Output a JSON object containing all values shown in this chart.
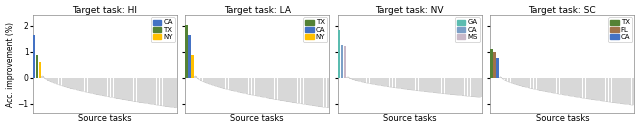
{
  "subplots": [
    {
      "title": "Target task: HI",
      "highlighted_bars": [
        {
          "label": "CA",
          "value": 1.65,
          "color": "#4472C4"
        },
        {
          "label": "TX",
          "value": 0.88,
          "color": "#548235"
        },
        {
          "label": "NY",
          "value": 0.62,
          "color": "#FFC000"
        }
      ],
      "n_gray_bars": 47,
      "gray_bar_max": 0.08,
      "gray_bar_min": -1.15
    },
    {
      "title": "Target task: LA",
      "highlighted_bars": [
        {
          "label": "TX",
          "value": 2.02,
          "color": "#548235"
        },
        {
          "label": "CA",
          "value": 1.65,
          "color": "#4472C4"
        },
        {
          "label": "NY",
          "value": 0.88,
          "color": "#FFC000"
        }
      ],
      "n_gray_bars": 47,
      "gray_bar_max": 0.08,
      "gray_bar_min": -1.15
    },
    {
      "title": "Target task: NV",
      "highlighted_bars": [
        {
          "label": "GA",
          "value": 1.82,
          "color": "#5BBCB0"
        },
        {
          "label": "CA",
          "value": 1.25,
          "color": "#7B9FC7"
        },
        {
          "label": "MS",
          "value": 1.22,
          "color": "#C9B8C8"
        }
      ],
      "n_gray_bars": 47,
      "gray_bar_max": 0.05,
      "gray_bar_min": -0.75
    },
    {
      "title": "Target task: SC",
      "highlighted_bars": [
        {
          "label": "TX",
          "value": 1.1,
          "color": "#548235"
        },
        {
          "label": "FL",
          "value": 1.0,
          "color": "#A0724A"
        },
        {
          "label": "CA",
          "value": 0.78,
          "color": "#4472C4"
        }
      ],
      "n_gray_bars": 47,
      "gray_bar_max": 0.05,
      "gray_bar_min": -1.05
    }
  ],
  "ylabel": "Acc. improvement (%)",
  "xlabel": "Source tasks",
  "ylim": [
    -1.35,
    2.4
  ],
  "yticks": [
    -1,
    0,
    1,
    2
  ],
  "background_color": "#ffffff",
  "gray_color": "#d8d8d8",
  "gray_edge_color": "#d8d8d8"
}
